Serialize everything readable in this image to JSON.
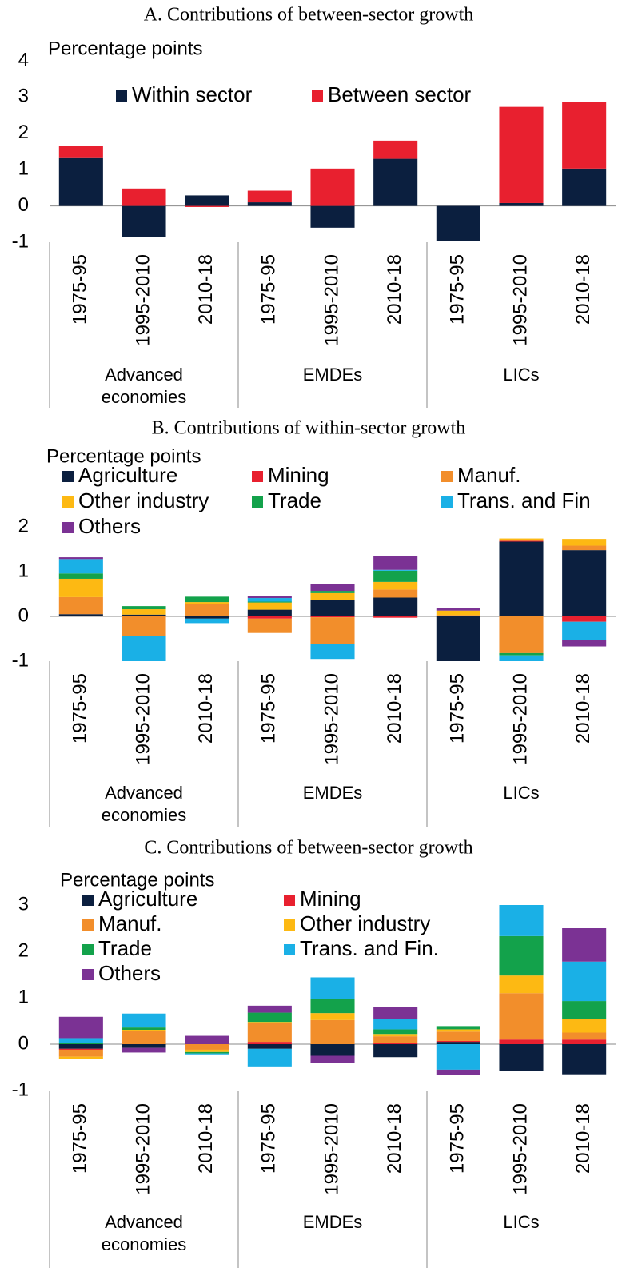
{
  "chart_data": [
    {
      "type": "stacked_bar",
      "title": "A. Contributions of between-sector growth",
      "y_label": "Percentage points",
      "categories": [
        "1975-95",
        "1995-2010",
        "2010-18",
        "1975-95",
        "1995-2010",
        "2010-18",
        "1975-95",
        "1995-2010",
        "2010-18"
      ],
      "group_labels": [
        "Advanced economies",
        "EMDEs",
        "LICs"
      ],
      "series": [
        {
          "name": "Within sector",
          "color": "#0b1f3f",
          "values": [
            1.34,
            -0.86,
            0.29,
            0.1,
            -0.6,
            1.3,
            -0.97,
            0.08,
            1.03
          ]
        },
        {
          "name": "Between sector",
          "color": "#e8202f",
          "values": [
            0.31,
            0.48,
            -0.03,
            0.32,
            1.03,
            0.5,
            0,
            2.65,
            1.83
          ]
        }
      ],
      "ylim": [
        -1,
        4
      ],
      "yticks": [
        -1,
        0,
        1,
        2,
        3,
        4
      ]
    },
    {
      "type": "stacked_bar",
      "title": "B. Contributions of within-sector growth",
      "y_label": "Percentage points",
      "categories": [
        "1975-95",
        "1995-2010",
        "2010-18",
        "1975-95",
        "1995-2010",
        "2010-18",
        "1975-95",
        "1995-2010",
        "2010-18"
      ],
      "group_labels": [
        "Advanced economies",
        "EMDEs",
        "LICs"
      ],
      "series": [
        {
          "name": "Agriculture",
          "color": "#0b1f3f",
          "values": [
            0.05,
            0.04,
            -0.05,
            0.15,
            0.36,
            0.42,
            -1.0,
            1.67,
            1.48
          ]
        },
        {
          "name": "Mining",
          "color": "#e8202f",
          "values": [
            0,
            0,
            0,
            -0.05,
            -0.02,
            -0.03,
            0,
            0.02,
            -0.12
          ]
        },
        {
          "name": "Manuf.",
          "color": "#f28e2b",
          "values": [
            0.38,
            -0.43,
            0.27,
            -0.32,
            -0.6,
            0.18,
            0.03,
            -0.82,
            0.1
          ]
        },
        {
          "name": "Other industry",
          "color": "#fdb913",
          "values": [
            0.41,
            0.12,
            0.05,
            0.16,
            0.16,
            0.17,
            0.1,
            0.05,
            0.15
          ]
        },
        {
          "name": "Trade",
          "color": "#13a24b",
          "values": [
            0.12,
            0.07,
            0.12,
            0.02,
            0.05,
            0.25,
            0,
            -0.05,
            0
          ]
        },
        {
          "name": "Trans. and Fin",
          "color": "#1ab0e6",
          "values": [
            0.32,
            -0.57,
            -0.1,
            0.08,
            -0.33,
            0.02,
            0,
            -0.13,
            -0.4
          ]
        },
        {
          "name": "Others",
          "color": "#7b3294",
          "values": [
            0.04,
            0,
            0,
            0.05,
            0.15,
            0.3,
            0.05,
            0,
            -0.15
          ]
        }
      ],
      "ylim": [
        -1,
        2
      ],
      "yticks": [
        -1,
        0,
        1,
        2
      ]
    },
    {
      "type": "stacked_bar",
      "title": "C. Contributions of between-sector growth",
      "y_label": "Percentage points",
      "categories": [
        "1975-95",
        "1995-2010",
        "2010-18",
        "1975-95",
        "1995-2010",
        "2010-18",
        "1975-95",
        "1995-2010",
        "2010-18"
      ],
      "group_labels": [
        "Advanced economies",
        "EMDEs",
        "LICs"
      ],
      "series": [
        {
          "name": "Agriculture",
          "color": "#0b1f3f",
          "values": [
            -0.1,
            -0.08,
            0,
            -0.1,
            -0.25,
            -0.28,
            0.05,
            -0.58,
            -0.65
          ]
        },
        {
          "name": "Mining",
          "color": "#e8202f",
          "values": [
            -0.02,
            0,
            0,
            0.05,
            0,
            0.02,
            0.02,
            0.1,
            0.1
          ]
        },
        {
          "name": "Manuf.",
          "color": "#f28e2b",
          "values": [
            -0.15,
            0.28,
            -0.12,
            0.4,
            0.52,
            0.15,
            0.2,
            1.0,
            0.15
          ]
        },
        {
          "name": "Other industry",
          "color": "#fdb913",
          "values": [
            -0.05,
            0.03,
            -0.05,
            0.03,
            0.15,
            0.05,
            0.05,
            0.38,
            0.3
          ]
        },
        {
          "name": "Trade",
          "color": "#13a24b",
          "values": [
            0.03,
            0.05,
            -0.03,
            0.2,
            0.3,
            0.1,
            0.07,
            0.85,
            0.38
          ]
        },
        {
          "name": "Trans. and Fin.",
          "color": "#1ab0e6",
          "values": [
            0.1,
            0.3,
            -0.02,
            -0.38,
            0.47,
            0.22,
            -0.55,
            0.67,
            0.85
          ]
        },
        {
          "name": "Others",
          "color": "#7b3294",
          "values": [
            0.46,
            -0.1,
            0.18,
            0.15,
            -0.15,
            0.26,
            -0.12,
            0,
            0.72
          ]
        }
      ],
      "ylim": [
        -1,
        3
      ],
      "yticks": [
        -1,
        0,
        1,
        2,
        3
      ]
    }
  ]
}
